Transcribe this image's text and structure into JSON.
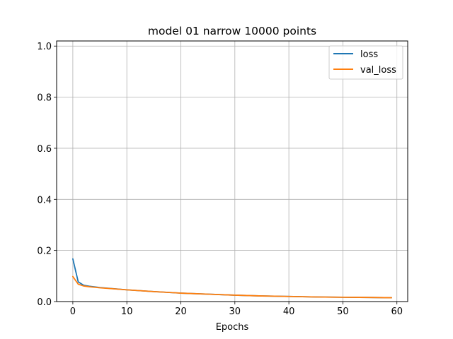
{
  "chart_data": {
    "type": "line",
    "title": "model 01 narrow 10000 points",
    "xlabel": "Epochs",
    "ylabel": "",
    "xlim": [
      -3.0,
      62.0
    ],
    "ylim": [
      0.0,
      1.02
    ],
    "xticks": [
      0,
      10,
      20,
      30,
      40,
      50,
      60
    ],
    "yticks": [
      0.0,
      0.2,
      0.4,
      0.6,
      0.8,
      1.0
    ],
    "xtick_labels": [
      "0",
      "10",
      "20",
      "30",
      "40",
      "50",
      "60"
    ],
    "ytick_labels": [
      "0.0",
      "0.2",
      "0.4",
      "0.6",
      "0.8",
      "1.0"
    ],
    "grid": true,
    "legend_position": "top-right",
    "series": [
      {
        "name": "loss",
        "color": "#1f77b4",
        "x": [
          0,
          1,
          2,
          3,
          5,
          10,
          15,
          20,
          25,
          30,
          35,
          40,
          45,
          50,
          55,
          59
        ],
        "y": [
          0.167,
          0.077,
          0.064,
          0.06,
          0.055,
          0.046,
          0.039,
          0.033,
          0.029,
          0.025,
          0.022,
          0.02,
          0.018,
          0.017,
          0.016,
          0.015
        ]
      },
      {
        "name": "val_loss",
        "color": "#ff7f0e",
        "x": [
          0,
          1,
          2,
          3,
          5,
          10,
          15,
          20,
          25,
          30,
          35,
          40,
          45,
          50,
          55,
          59
        ],
        "y": [
          0.098,
          0.068,
          0.061,
          0.058,
          0.054,
          0.046,
          0.039,
          0.033,
          0.029,
          0.025,
          0.022,
          0.02,
          0.018,
          0.017,
          0.016,
          0.015
        ]
      }
    ]
  }
}
